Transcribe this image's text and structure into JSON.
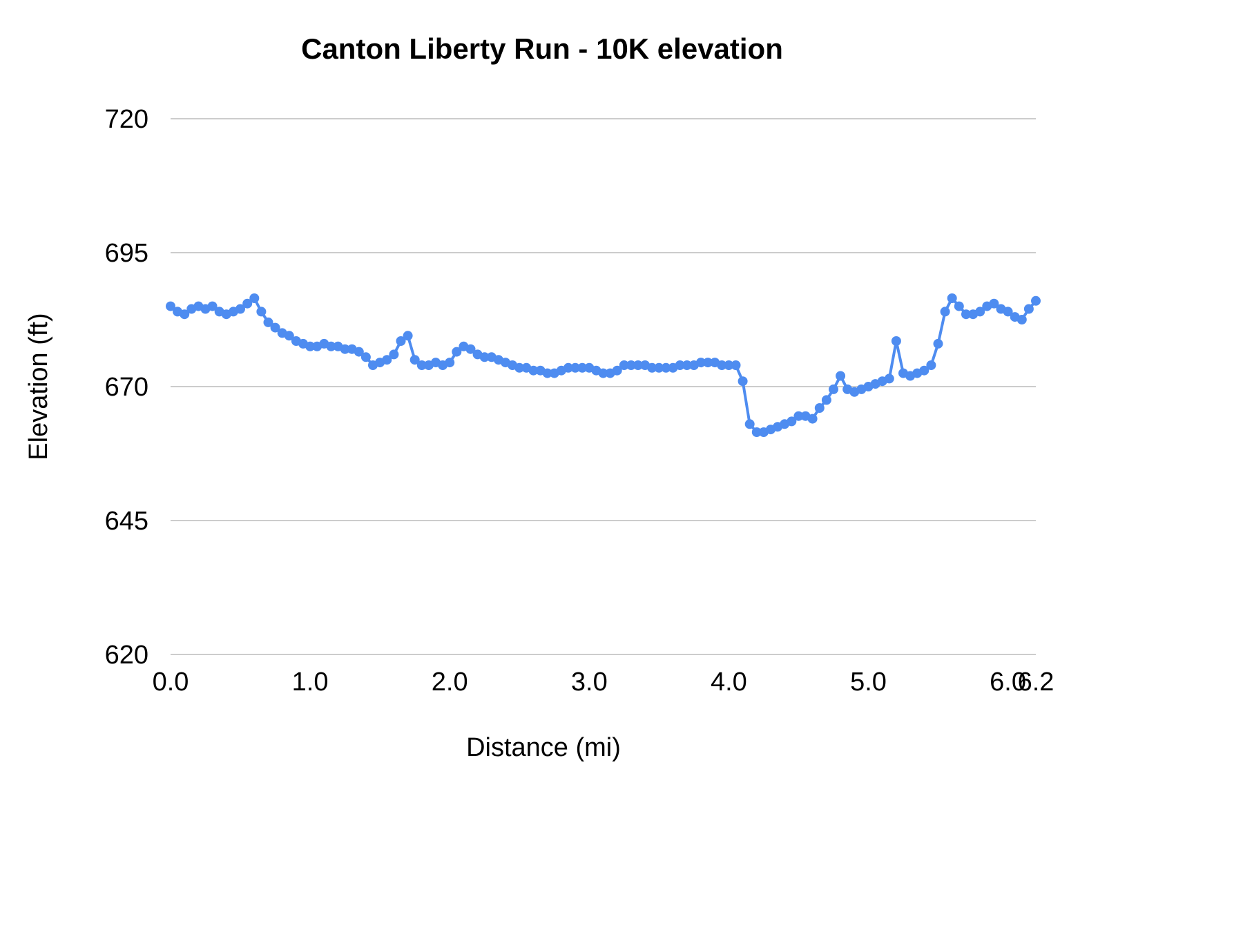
{
  "chart_data": {
    "type": "line",
    "title": "Canton Liberty Run - 10K elevation",
    "xlabel": "Distance (mi)",
    "ylabel": "Elevation (ft)",
    "xlim": [
      0,
      6.2
    ],
    "ylim": [
      620,
      720
    ],
    "grid": "horizontal",
    "legend_position": "none",
    "line_color": "#4e8cf0",
    "gridline_color": "#cccccc",
    "y_ticks": [
      620,
      645,
      670,
      695,
      720
    ],
    "x_ticks": [
      0,
      1,
      2,
      3,
      4,
      5,
      6,
      6.2
    ],
    "x_tick_labels": [
      "0.0",
      "1.0",
      "2.0",
      "3.0",
      "4.0",
      "5.0",
      "6.0",
      "6.2"
    ],
    "series": [
      {
        "name": "Elevation",
        "x": [
          0,
          0.05,
          0.1,
          0.15,
          0.2,
          0.25,
          0.3,
          0.35,
          0.4,
          0.45,
          0.5,
          0.55,
          0.6,
          0.65,
          0.7,
          0.75,
          0.8,
          0.85,
          0.9,
          0.95,
          1,
          1.05,
          1.1,
          1.15,
          1.2,
          1.25,
          1.3,
          1.35,
          1.4,
          1.45,
          1.5,
          1.55,
          1.6,
          1.65,
          1.7,
          1.75,
          1.8,
          1.85,
          1.9,
          1.95,
          2,
          2.05,
          2.1,
          2.15,
          2.2,
          2.25,
          2.3,
          2.35,
          2.4,
          2.45,
          2.5,
          2.55,
          2.6,
          2.65,
          2.7,
          2.75,
          2.8,
          2.85,
          2.9,
          2.95,
          3,
          3.05,
          3.1,
          3.15,
          3.2,
          3.25,
          3.3,
          3.35,
          3.4,
          3.45,
          3.5,
          3.55,
          3.6,
          3.65,
          3.7,
          3.75,
          3.8,
          3.85,
          3.9,
          3.95,
          4,
          4.05,
          4.1,
          4.15,
          4.2,
          4.25,
          4.3,
          4.35,
          4.4,
          4.45,
          4.5,
          4.55,
          4.6,
          4.65,
          4.7,
          4.75,
          4.8,
          4.85,
          4.9,
          4.95,
          5,
          5.05,
          5.1,
          5.15,
          5.2,
          5.25,
          5.3,
          5.35,
          5.4,
          5.45,
          5.5,
          5.55,
          5.6,
          5.65,
          5.7,
          5.75,
          5.8,
          5.85,
          5.9,
          5.95,
          6,
          6.05,
          6.1,
          6.15,
          6.2
        ],
        "y": [
          685,
          684,
          683.5,
          684.5,
          685,
          684.5,
          685,
          684,
          683.5,
          684,
          684.5,
          685.5,
          686.5,
          684,
          682,
          681,
          680,
          679.5,
          678.5,
          678,
          677.5,
          677.5,
          678,
          677.5,
          677.5,
          677,
          677,
          676.5,
          675.5,
          674,
          674.5,
          675,
          676,
          678.5,
          679.5,
          675,
          674,
          674,
          674.5,
          674,
          674.5,
          676.5,
          677.5,
          677,
          676,
          675.5,
          675.5,
          675,
          674.5,
          674,
          673.5,
          673.5,
          673,
          673,
          672.5,
          672.5,
          673,
          673.5,
          673.5,
          673.5,
          673.5,
          673,
          672.5,
          672.5,
          673,
          674,
          674,
          674,
          674,
          673.5,
          673.5,
          673.5,
          673.5,
          674,
          674,
          674,
          674.5,
          674.5,
          674.5,
          674,
          674,
          674,
          671,
          663,
          661.5,
          661.5,
          662,
          662.5,
          663,
          663.5,
          664.5,
          664.5,
          664,
          666,
          667.5,
          669.5,
          672,
          669.5,
          669,
          669.5,
          670,
          670.5,
          671,
          671.5,
          678.5,
          672.5,
          672,
          672.5,
          673,
          674,
          678,
          684,
          686.5,
          685,
          683.5,
          683.5,
          684,
          685,
          685.5,
          684.5,
          684,
          683,
          682.5,
          684.5,
          686
        ]
      }
    ]
  }
}
